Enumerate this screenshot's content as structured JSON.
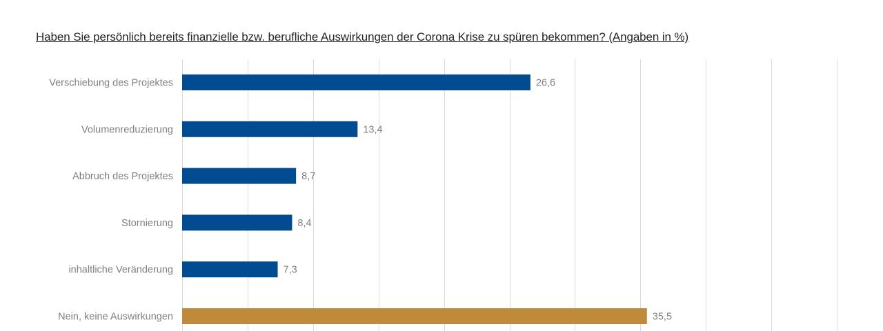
{
  "chart_data": {
    "type": "bar",
    "orientation": "horizontal",
    "title": "Haben Sie persönlich bereits finanzielle bzw.  berufliche Auswirkungen der Corona Krise zu spüren bekommen? (Angaben in %)",
    "categories": [
      "Verschiebung des Projektes",
      "Volumenreduzierung",
      "Abbruch des Projektes",
      "Stornierung",
      "inhaltliche Veränderung",
      "Nein, keine Auswirkungen"
    ],
    "values": [
      26.6,
      13.4,
      8.7,
      8.4,
      7.3,
      35.5
    ],
    "value_labels": [
      "26,6",
      "13,4",
      "8,7",
      "8,4",
      "7,3",
      "35,5"
    ],
    "xlim": [
      0,
      50
    ],
    "grid": true,
    "colors": {
      "primary": "#004b91",
      "highlight": "#bf8a3a",
      "grid": "#d9d9d9",
      "text": "#7f7f7f",
      "title": "#262626"
    },
    "highlight_category": "Nein, keine Auswirkungen"
  }
}
